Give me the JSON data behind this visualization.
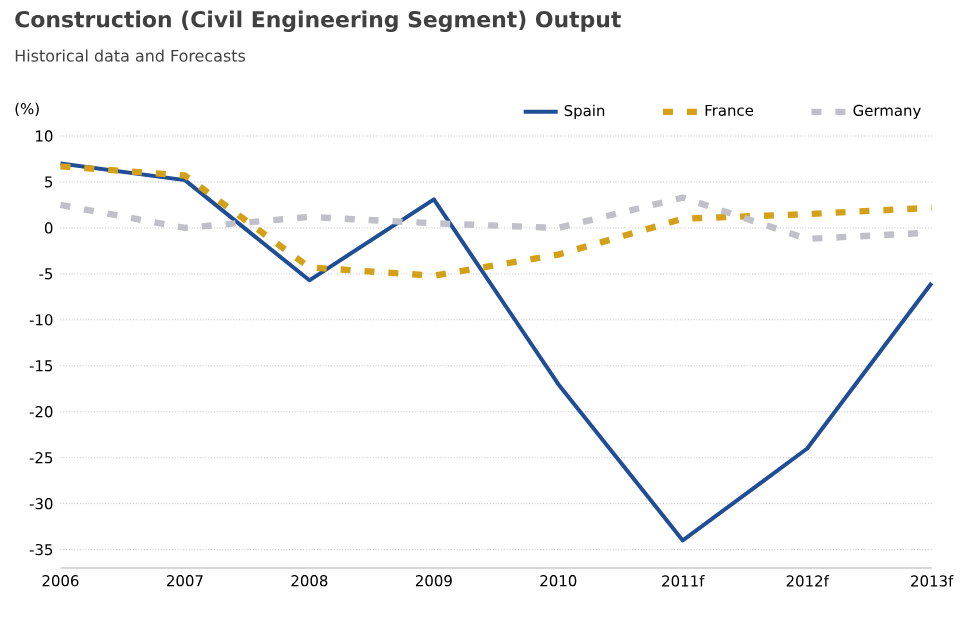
{
  "chart_data": {
    "type": "line",
    "title": "Construction (Civil Engineering Segment) Output",
    "subtitle": "Historical data and  Forecasts",
    "ylabel": "(%)",
    "categories": [
      "2006",
      "2007",
      "2008",
      "2009",
      "2010",
      "2011f",
      "2012f",
      "2013f"
    ],
    "series": [
      {
        "name": "Spain",
        "color": "#1f4e96",
        "line_style": "solid",
        "values": [
          7,
          5.2,
          -5.7,
          3.1,
          -17,
          -34,
          -24,
          -6
        ]
      },
      {
        "name": "France",
        "color": "#d4a017",
        "line_style": "dashed",
        "values": [
          6.7,
          5.7,
          -4.3,
          -5.2,
          -2.9,
          1,
          1.5,
          2.2
        ]
      },
      {
        "name": "Germany",
        "color": "#c0c0c8",
        "line_style": "dashed",
        "values": [
          2.5,
          0,
          1.2,
          0.5,
          0,
          3.3,
          -1.2,
          -0.5
        ]
      }
    ],
    "ylim": [
      -37,
      10
    ],
    "yticks": [
      10,
      5,
      0,
      -5,
      -10,
      -15,
      -20,
      -25,
      -30,
      -35
    ],
    "grid": "y",
    "legend": "top right",
    "marker": "none"
  }
}
